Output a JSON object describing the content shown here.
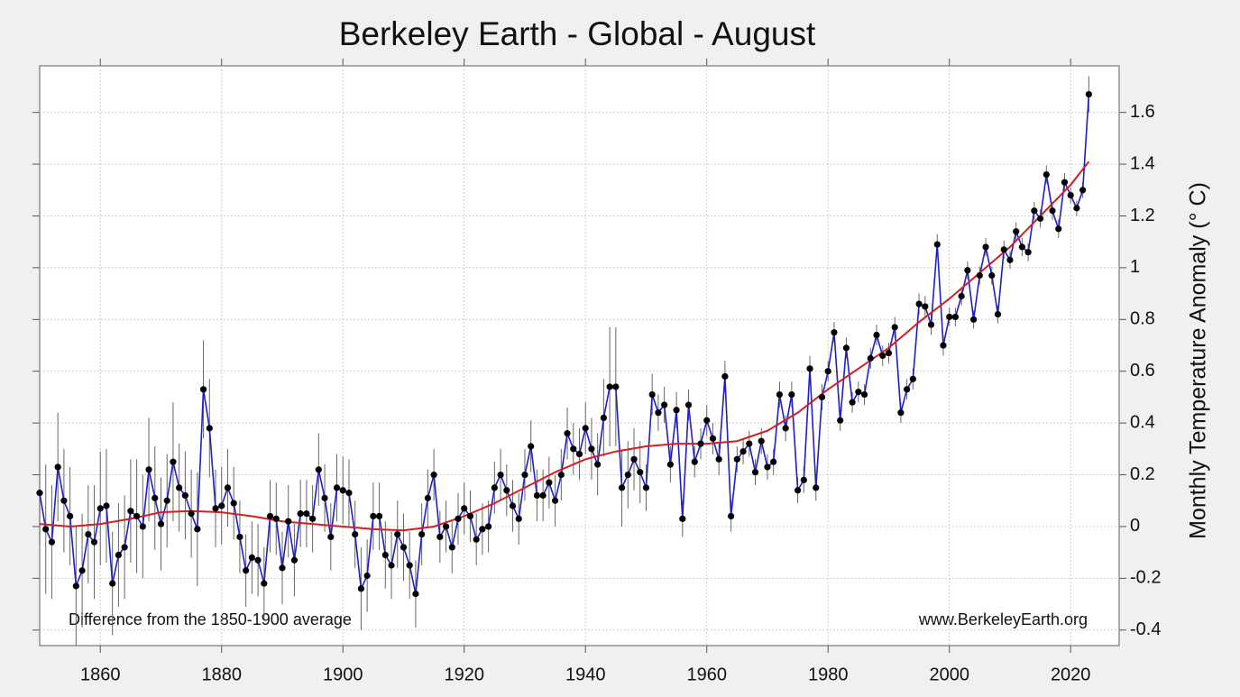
{
  "chart_data": {
    "type": "line",
    "title": "Berkeley Earth - Global - August",
    "y_label": "Monthly Temperature Anomaly (° C)",
    "annotations": [
      "Difference from the 1850-1900 average",
      "www.BerkeleyEarth.org"
    ],
    "xlim": [
      1850,
      2028
    ],
    "xticks": [
      1860,
      1880,
      1900,
      1920,
      1940,
      1960,
      1980,
      2000,
      2020
    ],
    "ylim": [
      -0.46,
      1.78
    ],
    "yticks": [
      -0.4,
      -0.2,
      0,
      0.2,
      0.4,
      0.6,
      0.8,
      1,
      1.2,
      1.4,
      1.6
    ],
    "grid": true,
    "x": [
      1850,
      1851,
      1852,
      1853,
      1854,
      1855,
      1856,
      1857,
      1858,
      1859,
      1860,
      1861,
      1862,
      1863,
      1864,
      1865,
      1866,
      1867,
      1868,
      1869,
      1870,
      1871,
      1872,
      1873,
      1874,
      1875,
      1876,
      1877,
      1878,
      1879,
      1880,
      1881,
      1882,
      1883,
      1884,
      1885,
      1886,
      1887,
      1888,
      1889,
      1890,
      1891,
      1892,
      1893,
      1894,
      1895,
      1896,
      1897,
      1898,
      1899,
      1900,
      1901,
      1902,
      1903,
      1904,
      1905,
      1906,
      1907,
      1908,
      1909,
      1910,
      1911,
      1912,
      1913,
      1914,
      1915,
      1916,
      1917,
      1918,
      1919,
      1920,
      1921,
      1922,
      1923,
      1924,
      1925,
      1926,
      1927,
      1928,
      1929,
      1930,
      1931,
      1932,
      1933,
      1934,
      1935,
      1936,
      1937,
      1938,
      1939,
      1940,
      1941,
      1942,
      1943,
      1944,
      1945,
      1946,
      1947,
      1948,
      1949,
      1950,
      1951,
      1952,
      1953,
      1954,
      1955,
      1956,
      1957,
      1958,
      1959,
      1960,
      1961,
      1962,
      1963,
      1964,
      1965,
      1966,
      1967,
      1968,
      1969,
      1970,
      1971,
      1972,
      1973,
      1974,
      1975,
      1976,
      1977,
      1978,
      1979,
      1980,
      1981,
      1982,
      1983,
      1984,
      1985,
      1986,
      1987,
      1988,
      1989,
      1990,
      1991,
      1992,
      1993,
      1994,
      1995,
      1996,
      1997,
      1998,
      1999,
      2000,
      2001,
      2002,
      2003,
      2004,
      2005,
      2006,
      2007,
      2008,
      2009,
      2010,
      2011,
      2012,
      2013,
      2014,
      2015,
      2016,
      2017,
      2018,
      2019,
      2020,
      2021,
      2022,
      2023
    ],
    "series": [
      {
        "color": "#1f1fc8",
        "values": [
          0.13,
          -0.01,
          -0.06,
          0.23,
          0.1,
          0.04,
          -0.23,
          -0.17,
          -0.03,
          -0.06,
          0.07,
          0.08,
          -0.22,
          -0.11,
          -0.08,
          0.06,
          0.04,
          0.0,
          0.22,
          0.11,
          0.01,
          0.1,
          0.25,
          0.15,
          0.12,
          0.05,
          -0.01,
          0.53,
          0.38,
          0.07,
          0.08,
          0.15,
          0.09,
          -0.04,
          -0.17,
          -0.12,
          -0.13,
          -0.22,
          0.04,
          0.03,
          -0.16,
          0.02,
          -0.13,
          0.05,
          0.05,
          0.03,
          0.22,
          0.11,
          -0.04,
          0.15,
          0.14,
          0.13,
          -0.03,
          -0.24,
          -0.19,
          0.04,
          0.04,
          -0.11,
          -0.15,
          -0.03,
          -0.08,
          -0.15,
          -0.26,
          -0.03,
          0.11,
          0.2,
          -0.04,
          0.0,
          -0.08,
          0.03,
          0.07,
          0.04,
          -0.05,
          -0.01,
          0.0,
          0.15,
          0.2,
          0.14,
          0.08,
          0.03,
          0.2,
          0.31,
          0.12,
          0.12,
          0.17,
          0.1,
          0.2,
          0.36,
          0.3,
          0.28,
          0.38,
          0.3,
          0.24,
          0.42,
          0.54,
          0.54,
          0.15,
          0.2,
          0.26,
          0.21,
          0.15,
          0.51,
          0.44,
          0.47,
          0.24,
          0.45,
          0.03,
          0.47,
          0.25,
          0.32,
          0.41,
          0.34,
          0.26,
          0.58,
          0.04,
          0.26,
          0.29,
          0.32,
          0.21,
          0.33,
          0.23,
          0.25,
          0.51,
          0.38,
          0.51,
          0.14,
          0.18,
          0.61,
          0.15,
          0.5,
          0.6,
          0.75,
          0.41,
          0.69,
          0.48,
          0.52,
          0.51,
          0.65,
          0.74,
          0.66,
          0.67,
          0.77,
          0.44,
          0.53,
          0.57,
          0.86,
          0.85,
          0.78,
          1.09,
          0.7,
          0.81,
          0.81,
          0.89,
          0.99,
          0.8,
          0.97,
          1.08,
          0.97,
          0.82,
          1.07,
          1.03,
          1.14,
          1.08,
          1.06,
          1.22,
          1.19,
          1.36,
          1.22,
          1.15,
          1.33,
          1.28,
          1.23,
          1.3,
          1.67
        ],
        "errors": [
          0.2,
          0.25,
          0.22,
          0.21,
          0.2,
          0.19,
          0.23,
          0.22,
          0.19,
          0.22,
          0.22,
          0.22,
          0.2,
          0.2,
          0.2,
          0.2,
          0.22,
          0.2,
          0.2,
          0.2,
          0.18,
          0.18,
          0.23,
          0.17,
          0.17,
          0.17,
          0.22,
          0.19,
          0.19,
          0.15,
          0.15,
          0.15,
          0.14,
          0.14,
          0.14,
          0.14,
          0.14,
          0.14,
          0.14,
          0.14,
          0.14,
          0.14,
          0.14,
          0.13,
          0.13,
          0.13,
          0.14,
          0.13,
          0.13,
          0.13,
          0.13,
          0.13,
          0.13,
          0.16,
          0.14,
          0.13,
          0.13,
          0.13,
          0.13,
          0.13,
          0.13,
          0.13,
          0.13,
          0.12,
          0.11,
          0.1,
          0.1,
          0.1,
          0.1,
          0.1,
          0.1,
          0.1,
          0.1,
          0.1,
          0.1,
          0.1,
          0.1,
          0.1,
          0.1,
          0.1,
          0.1,
          0.1,
          0.1,
          0.1,
          0.1,
          0.1,
          0.1,
          0.1,
          0.1,
          0.1,
          0.1,
          0.12,
          0.12,
          0.15,
          0.23,
          0.23,
          0.15,
          0.13,
          0.12,
          0.12,
          0.09,
          0.08,
          0.07,
          0.07,
          0.07,
          0.07,
          0.07,
          0.06,
          0.06,
          0.06,
          0.06,
          0.06,
          0.06,
          0.06,
          0.06,
          0.05,
          0.05,
          0.05,
          0.05,
          0.05,
          0.05,
          0.05,
          0.05,
          0.05,
          0.05,
          0.05,
          0.05,
          0.05,
          0.05,
          0.05,
          0.04,
          0.04,
          0.04,
          0.04,
          0.04,
          0.04,
          0.04,
          0.04,
          0.04,
          0.04,
          0.04,
          0.04,
          0.04,
          0.04,
          0.04,
          0.04,
          0.04,
          0.04,
          0.04,
          0.04,
          0.035,
          0.035,
          0.035,
          0.035,
          0.035,
          0.035,
          0.035,
          0.035,
          0.035,
          0.035,
          0.035,
          0.035,
          0.035,
          0.035,
          0.035,
          0.035,
          0.035,
          0.035,
          0.035,
          0.035,
          0.03,
          0.03,
          0.03,
          0.07
        ]
      },
      {
        "color": "#d02020",
        "x": [
          1850,
          1855,
          1860,
          1865,
          1870,
          1875,
          1880,
          1885,
          1890,
          1895,
          1900,
          1905,
          1910,
          1915,
          1920,
          1925,
          1930,
          1935,
          1940,
          1945,
          1950,
          1955,
          1960,
          1965,
          1970,
          1975,
          1980,
          1985,
          1990,
          1995,
          2000,
          2005,
          2010,
          2015,
          2020,
          2023
        ],
        "values": [
          0.01,
          0.0,
          0.01,
          0.03,
          0.055,
          0.06,
          0.055,
          0.04,
          0.02,
          0.01,
          0.0,
          -0.01,
          -0.015,
          0.0,
          0.04,
          0.09,
          0.15,
          0.21,
          0.26,
          0.29,
          0.31,
          0.32,
          0.32,
          0.33,
          0.37,
          0.44,
          0.53,
          0.61,
          0.69,
          0.79,
          0.88,
          0.98,
          1.08,
          1.2,
          1.32,
          1.41
        ]
      }
    ]
  }
}
